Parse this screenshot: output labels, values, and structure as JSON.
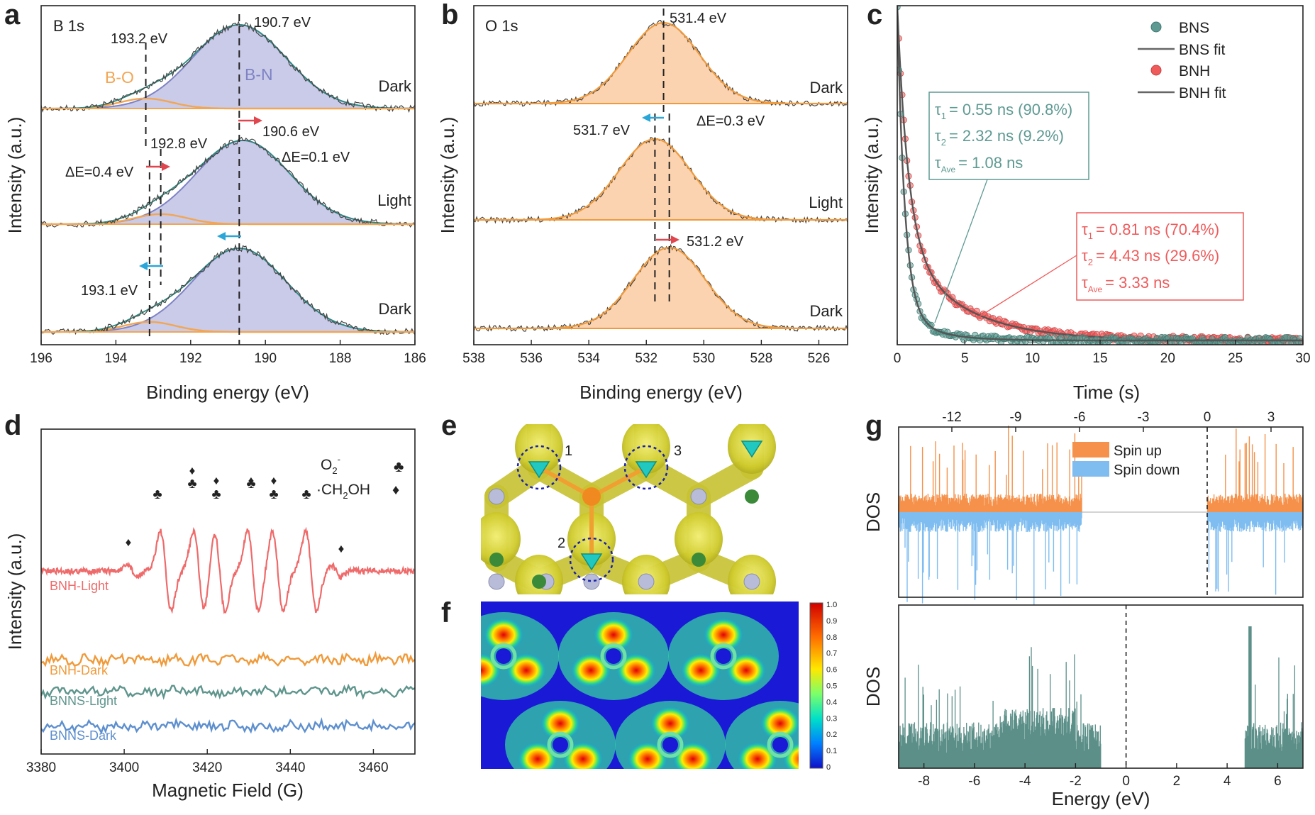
{
  "panel_letters": [
    "a",
    "b",
    "c",
    "d",
    "e",
    "f",
    "g"
  ],
  "colors": {
    "bn_fill": "#c9cbe8",
    "bn_line": "#7f82c4",
    "bo_line": "#f2a654",
    "env_line": "#2b8a7e",
    "raw": "#444444",
    "o_fill": "#fcd3b0",
    "o_line": "#ef9a3c",
    "bns": "#5e9a92",
    "bnh": "#ef5b5b",
    "arrow_red": "#e0464d",
    "arrow_blue": "#2aa6d8",
    "spin_up": "#f5914a",
    "spin_down": "#7fbdf0",
    "dos": "#5b8f88",
    "epr_bnh_light": "#ef6a6a",
    "epr_bnh_dark": "#f09a3a",
    "epr_bnns_light": "#5e958c",
    "epr_bnns_dark": "#5d8fce"
  },
  "chart_data": [
    {
      "id": "a",
      "type": "line",
      "title": "B 1s",
      "xlabel": "Binding energy (eV)",
      "ylabel": "Intensity (a.u.)",
      "xlim": [
        196,
        186
      ],
      "xticks": [
        196,
        194,
        192,
        190,
        188,
        186
      ],
      "spectra": [
        {
          "name": "Dark",
          "peaks": [
            {
              "label": "B-N",
              "center": 190.7,
              "height": 1.0,
              "width": 1.25
            },
            {
              "label": "B-O",
              "center": 193.2,
              "height": 0.12,
              "width": 0.7
            }
          ]
        },
        {
          "name": "Light",
          "peaks": [
            {
              "label": "B-N",
              "center": 190.6,
              "height": 1.0,
              "width": 1.25
            },
            {
              "label": "B-O",
              "center": 192.8,
              "height": 0.12,
              "width": 0.7
            }
          ]
        },
        {
          "name": "Dark",
          "peaks": [
            {
              "label": "B-N",
              "center": 190.7,
              "height": 1.0,
              "width": 1.25
            },
            {
              "label": "B-O",
              "center": 193.1,
              "height": 0.12,
              "width": 0.7
            }
          ]
        }
      ],
      "peak_labels": [
        "B-O",
        "B-N"
      ],
      "annotations": {
        "t1": "193.2 eV",
        "t2": "190.7 eV",
        "t3": "190.6 eV",
        "t4": "192.8 eV",
        "t5": "ΔE=0.4 eV",
        "t6": "ΔE=0.1 eV",
        "t7": "193.1 eV"
      }
    },
    {
      "id": "b",
      "type": "line",
      "title": "O 1s",
      "xlabel": "Binding energy (eV)",
      "ylabel": "Intensity (a.u.)",
      "xlim": [
        538,
        525
      ],
      "xticks": [
        538,
        536,
        534,
        532,
        530,
        528,
        526
      ],
      "spectra": [
        {
          "name": "Dark",
          "center": 531.4,
          "width": 1.25
        },
        {
          "name": "Light",
          "center": 531.7,
          "width": 1.25
        },
        {
          "name": "Dark",
          "center": 531.2,
          "width": 1.25
        }
      ],
      "annotations": {
        "t1": "531.4 eV",
        "t2": "531.7 eV",
        "t3": "ΔE=0.3 eV",
        "t4": "531.2 eV"
      }
    },
    {
      "id": "c",
      "type": "scatter",
      "xlabel": "Time (s)",
      "ylabel": "Intensity (a.u.)",
      "xlim": [
        0,
        30
      ],
      "xticks": [
        0,
        5,
        10,
        15,
        20,
        25,
        30
      ],
      "series": [
        {
          "name": "BNS",
          "fit_name": "BNS fit",
          "tau1": 0.55,
          "a1": 0.908,
          "tau2": 2.32,
          "a2": 0.092
        },
        {
          "name": "BNH",
          "fit_name": "BNH fit",
          "tau1": 0.81,
          "a1": 0.704,
          "tau2": 4.43,
          "a2": 0.296
        }
      ],
      "legend_position": "top-right",
      "bns_box": {
        "r1": "= 0.55 ns (90.8%)",
        "r2": "= 2.32  ns (9.2%)",
        "r3": "= 1.08  ns"
      },
      "bnh_box": {
        "r1": "= 0.81 ns (70.4%)",
        "r2": "= 4.43  ns (29.6%)",
        "r3": "= 3.33  ns"
      },
      "tau_symbol": "τ",
      "sub1": "1",
      "sub2": "2",
      "subave": "Ave"
    },
    {
      "id": "d",
      "type": "line",
      "xlabel": "Magnetic Field (G)",
      "ylabel": "Intensity (a.u.)",
      "xlim": [
        3380,
        3470
      ],
      "xticks": [
        3380,
        3400,
        3420,
        3440,
        3460
      ],
      "series": [
        {
          "name": "BNH-Light"
        },
        {
          "name": "BNH-Dark"
        },
        {
          "name": "BNNS-Light"
        },
        {
          "name": "BNNS-Dark"
        }
      ],
      "epr_lines": [
        3410,
        3418,
        3423,
        3431,
        3437,
        3445
      ],
      "legend": {
        "o2": "O",
        "o2_sub": "2",
        "o2_sup": "-",
        "ch2oh": "·CH",
        "ch2oh_sub": "2",
        "ch2oh_tail": "OH",
        "club": "♣",
        "diamond": "♦"
      }
    },
    {
      "id": "f",
      "type": "heatmap",
      "colorbar_ticks": [
        "1.0",
        "0.9",
        "0.8",
        "0.7",
        "0.6",
        "0.5",
        "0.4",
        "0.3",
        "0.2",
        "0.1",
        "0"
      ]
    },
    {
      "id": "g_top",
      "type": "bar",
      "ylabel": "DOS",
      "xlim": [
        -14.5,
        4.5
      ],
      "xticks": [
        -12,
        -9,
        -6,
        -3,
        0,
        3
      ],
      "legend": [
        "Spin up",
        "Spin down"
      ],
      "band_edges": {
        "valence_top": -5.9,
        "conduction_bottom": 0
      }
    },
    {
      "id": "g_bottom",
      "type": "bar",
      "ylabel": "DOS",
      "xlabel": "Energy (eV)",
      "xlim": [
        -9,
        7
      ],
      "xticks": [
        -8,
        -6,
        -4,
        -2,
        0,
        2,
        4,
        6
      ],
      "band_edges": {
        "valence_top": -1,
        "conduction_bottom": 4.7
      }
    }
  ],
  "panel_e": {
    "site_labels": [
      "1",
      "2",
      "3"
    ]
  }
}
